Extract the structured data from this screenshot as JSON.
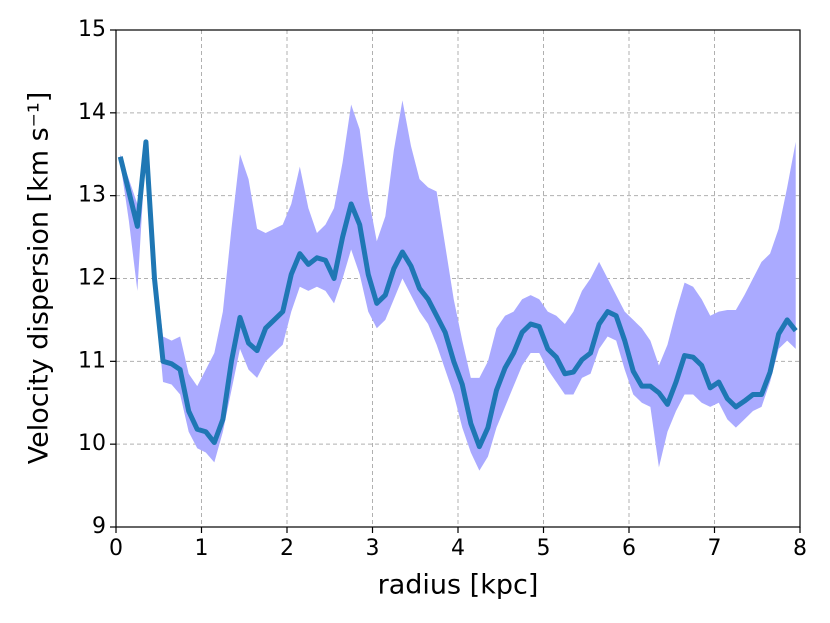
{
  "chart_data": {
    "type": "line",
    "xlabel": "radius [kpc]",
    "ylabel": "Velocity dispersion [km s⁻¹]",
    "x": [
      0.05,
      0.15,
      0.25,
      0.35,
      0.45,
      0.55,
      0.65,
      0.75,
      0.85,
      0.95,
      1.05,
      1.15,
      1.25,
      1.35,
      1.45,
      1.55,
      1.65,
      1.75,
      1.85,
      1.95,
      2.05,
      2.15,
      2.25,
      2.35,
      2.45,
      2.55,
      2.65,
      2.75,
      2.85,
      2.95,
      3.05,
      3.15,
      3.25,
      3.35,
      3.45,
      3.55,
      3.65,
      3.75,
      3.85,
      3.95,
      4.05,
      4.15,
      4.25,
      4.35,
      4.45,
      4.55,
      4.65,
      4.75,
      4.85,
      4.95,
      5.05,
      5.15,
      5.25,
      5.35,
      5.45,
      5.55,
      5.65,
      5.75,
      5.85,
      5.95,
      6.05,
      6.15,
      6.25,
      6.35,
      6.45,
      6.55,
      6.65,
      6.75,
      6.85,
      6.95,
      7.05,
      7.15,
      7.25,
      7.35,
      7.45,
      7.55,
      7.65,
      7.75,
      7.85,
      7.95
    ],
    "series": [
      {
        "color": "#1f77b4",
        "values": [
          13.47,
          13.05,
          12.63,
          13.65,
          12.0,
          11.0,
          10.97,
          10.9,
          10.4,
          10.18,
          10.15,
          10.02,
          10.3,
          11.0,
          11.53,
          11.22,
          11.13,
          11.4,
          11.5,
          11.6,
          12.05,
          12.3,
          12.17,
          12.25,
          12.22,
          12.0,
          12.5,
          12.9,
          12.65,
          12.05,
          11.7,
          11.8,
          12.12,
          12.32,
          12.15,
          11.88,
          11.75,
          11.55,
          11.35,
          11.0,
          10.72,
          10.25,
          9.97,
          10.2,
          10.65,
          10.92,
          11.1,
          11.35,
          11.45,
          11.42,
          11.15,
          11.05,
          10.85,
          10.87,
          11.02,
          11.1,
          11.45,
          11.6,
          11.55,
          11.25,
          10.88,
          10.7,
          10.7,
          10.62,
          10.48,
          10.75,
          11.07,
          11.05,
          10.95,
          10.68,
          10.75,
          10.55,
          10.45,
          10.52,
          10.6,
          10.6,
          10.87,
          11.33,
          11.5,
          11.37
        ]
      }
    ],
    "band": {
      "color": "#aaaaff",
      "upper": [
        13.5,
        13.2,
        12.9,
        13.6,
        12.2,
        11.3,
        11.25,
        11.3,
        10.85,
        10.7,
        10.9,
        11.1,
        11.6,
        12.6,
        13.5,
        13.2,
        12.6,
        12.55,
        12.6,
        12.65,
        12.9,
        13.35,
        12.85,
        12.55,
        12.65,
        12.85,
        13.4,
        14.1,
        13.8,
        13.0,
        12.45,
        12.75,
        13.55,
        14.15,
        13.6,
        13.2,
        13.1,
        13.05,
        12.4,
        11.75,
        11.25,
        10.8,
        10.8,
        11.0,
        11.4,
        11.55,
        11.6,
        11.75,
        11.8,
        11.75,
        11.6,
        11.55,
        11.45,
        11.6,
        11.85,
        12.0,
        12.2,
        12.0,
        11.8,
        11.6,
        11.5,
        11.4,
        11.25,
        10.95,
        11.2,
        11.6,
        11.95,
        11.9,
        11.75,
        11.55,
        11.6,
        11.62,
        11.62,
        11.8,
        12.0,
        12.2,
        12.3,
        12.6,
        13.1,
        13.65
      ],
      "lower": [
        13.4,
        12.7,
        11.85,
        13.6,
        11.9,
        10.75,
        10.72,
        10.6,
        10.15,
        9.95,
        9.9,
        9.78,
        10.15,
        10.65,
        11.15,
        10.9,
        10.8,
        11.0,
        11.1,
        11.2,
        11.6,
        11.9,
        11.85,
        11.9,
        11.85,
        11.7,
        12.0,
        12.35,
        12.05,
        11.6,
        11.4,
        11.5,
        11.75,
        12.0,
        11.8,
        11.6,
        11.45,
        11.2,
        10.9,
        10.6,
        10.2,
        9.9,
        9.68,
        9.85,
        10.2,
        10.45,
        10.7,
        10.95,
        11.1,
        11.1,
        10.9,
        10.75,
        10.6,
        10.6,
        10.8,
        10.85,
        11.15,
        11.3,
        11.25,
        10.9,
        10.6,
        10.5,
        10.45,
        9.72,
        10.15,
        10.4,
        10.6,
        10.6,
        10.5,
        10.45,
        10.5,
        10.3,
        10.2,
        10.3,
        10.4,
        10.45,
        10.75,
        11.15,
        11.25,
        11.15
      ]
    },
    "xlim": [
      0,
      8
    ],
    "xticks": [
      0,
      1,
      2,
      3,
      4,
      5,
      6,
      7,
      8
    ],
    "ylim": [
      9,
      15
    ],
    "yticks": [
      9,
      10,
      11,
      12,
      13,
      14,
      15
    ],
    "grid": true
  }
}
